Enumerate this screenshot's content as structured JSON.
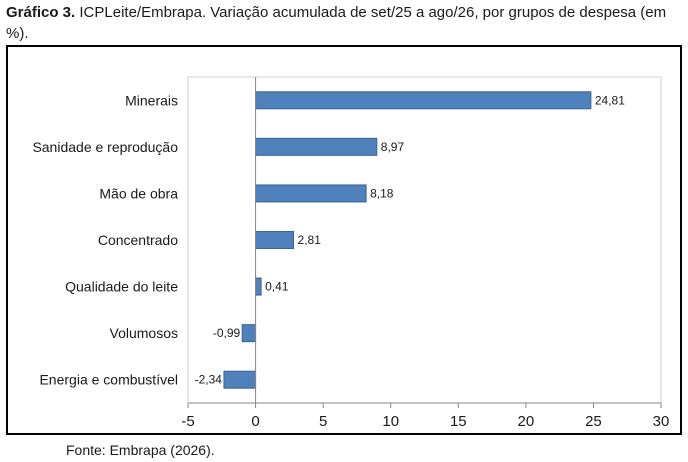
{
  "caption": {
    "label": "Gráfico 3.",
    "text": "ICPLeite/Embrapa. Variação acumulada de set/25 a ago/26, por grupos de despesa (em %)."
  },
  "source": "Fonte: Embrapa (2026).",
  "colors": {
    "bar": "#4F81BD",
    "bar_stroke": "#3A6595",
    "axis": "#868686"
  },
  "chart_data": {
    "type": "bar",
    "orientation": "horizontal",
    "categories": [
      "Minerais",
      "Sanidade e reprodução",
      "Mão de obra",
      "Concentrado",
      "Qualidade do leite",
      "Volumosos",
      "Energia e combustível"
    ],
    "values": [
      24.81,
      8.97,
      8.18,
      2.81,
      0.41,
      -0.99,
      -2.34
    ],
    "data_labels": [
      "24,81",
      "8,97",
      "8,18",
      "2,81",
      "0,41",
      "-0,99",
      "-2,34"
    ],
    "xlim": [
      -5,
      30
    ],
    "xticks": [
      -5,
      0,
      5,
      10,
      15,
      20,
      25,
      30
    ],
    "xtick_labels": [
      "-5",
      "0",
      "5",
      "10",
      "15",
      "20",
      "25",
      "30"
    ],
    "grid": false,
    "legend": "none"
  }
}
